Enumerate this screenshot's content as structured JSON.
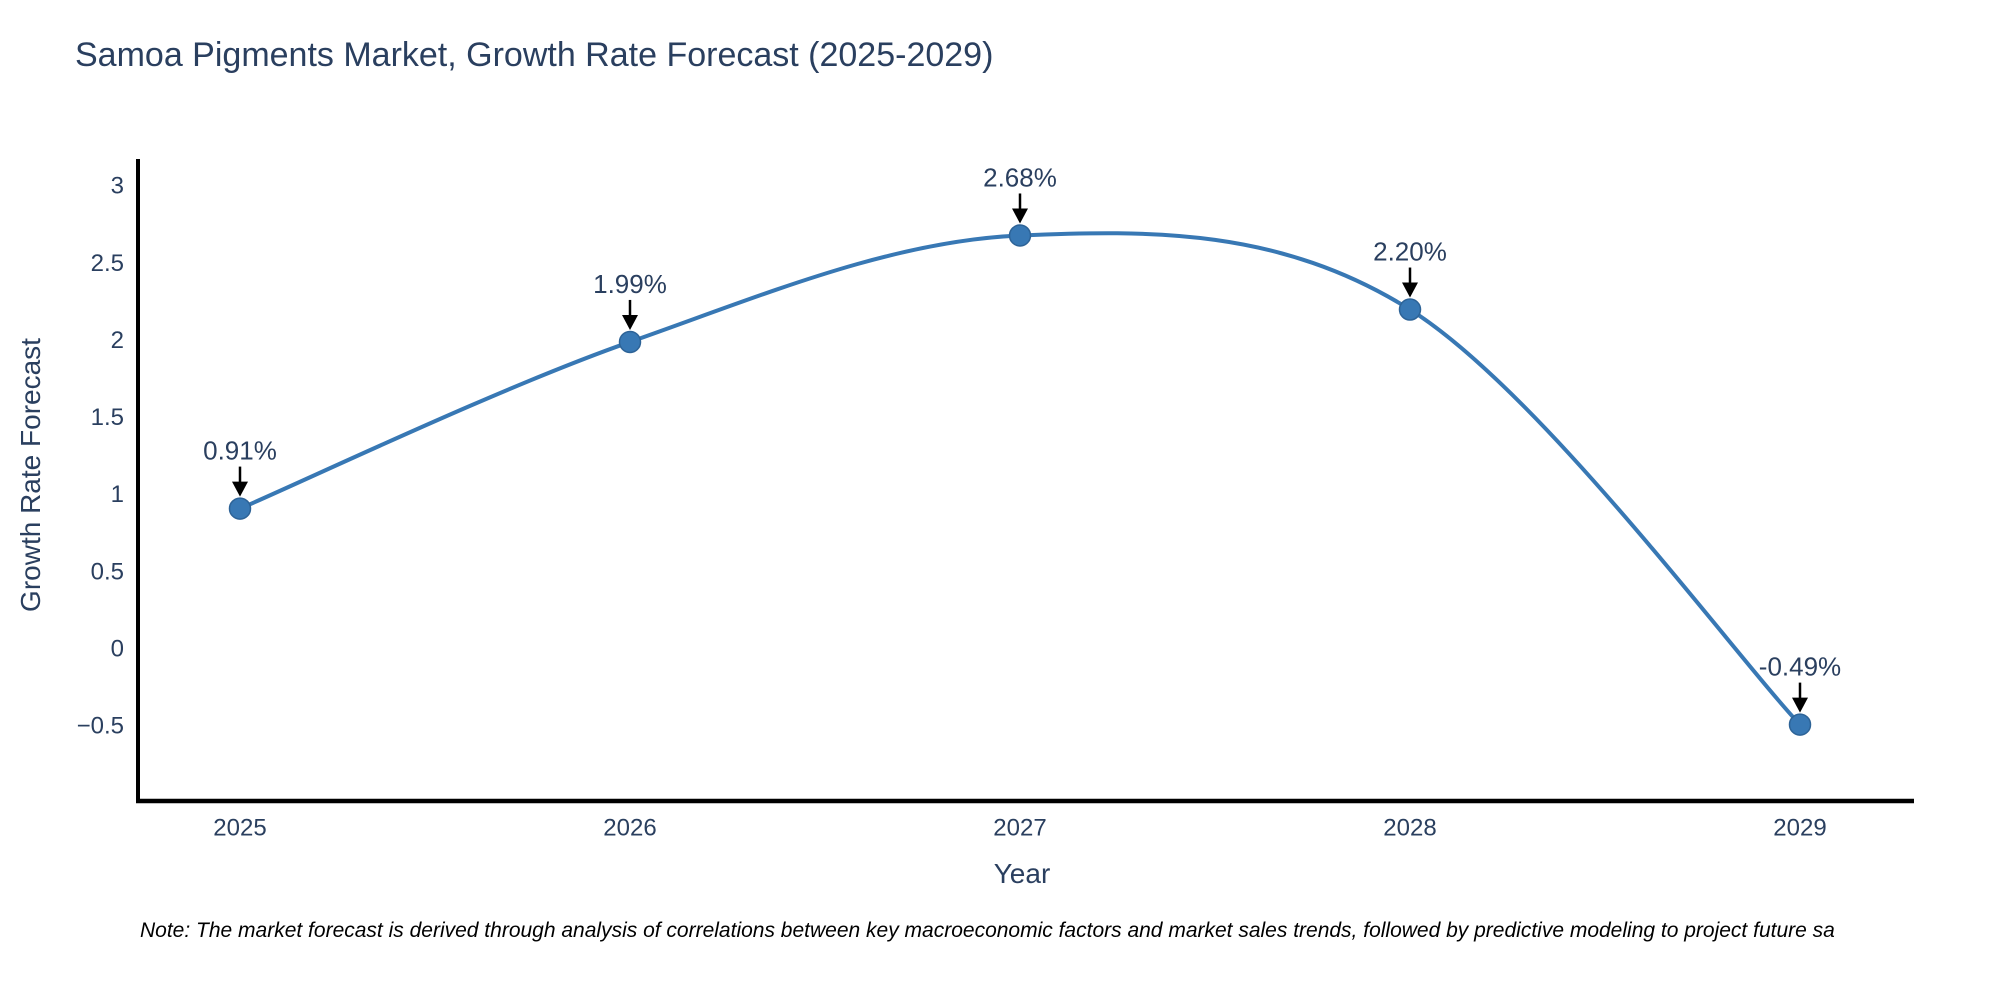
{
  "title": {
    "text": "Samoa Pigments Market, Growth Rate Forecast (2025-2029)",
    "color": "#2a3f5f"
  },
  "note": {
    "text": "Note: The market forecast is derived through analysis of correlations between key macroeconomic factors and market sales trends, followed by predictive modeling to project future sa"
  },
  "chart_data": {
    "type": "line",
    "title": "Samoa Pigments Market, Growth Rate Forecast (2025-2029)",
    "categories": [
      "2025",
      "2026",
      "2027",
      "2028",
      "2029"
    ],
    "x": [
      2025,
      2026,
      2027,
      2028,
      2029
    ],
    "values": [
      0.91,
      1.99,
      2.68,
      2.2,
      -0.49
    ],
    "point_labels": [
      "0.91%",
      "1.99%",
      "2.68%",
      "2.20%",
      "-0.49%"
    ],
    "xlabel": "Year",
    "ylabel": "Growth Rate Forecast",
    "y_ticks": [
      3,
      2.5,
      2,
      1.5,
      1,
      0.5,
      0,
      -0.5
    ],
    "y_tick_labels": [
      "3",
      "2.5",
      "2",
      "1.5",
      "1",
      "0.5",
      "0",
      "−0.5"
    ],
    "ylim": [
      -1.0,
      3.2
    ],
    "line_shape": "spline",
    "grid": false,
    "legend": "none",
    "markers": true,
    "annotation_style": "label-above-with-down-arrow",
    "colors": {
      "line": "#3878b4",
      "marker_fill": "#3878b4",
      "marker_edge": "#2d6397",
      "axis_line": "#000000",
      "tick_text": "#2a3f5f",
      "annotation_text": "#2a3f5f",
      "annotation_arrow": "#000000"
    }
  }
}
